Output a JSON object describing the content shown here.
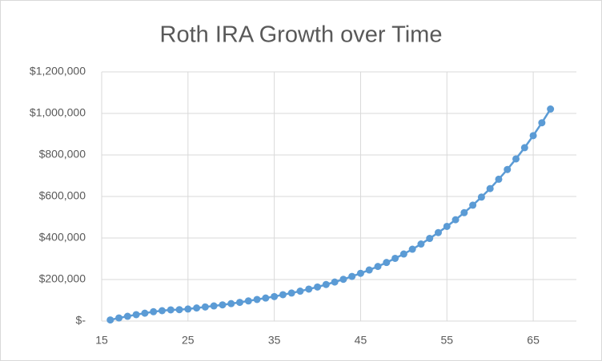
{
  "chart_data": {
    "type": "line",
    "title": "Roth IRA Growth over Time",
    "x": [
      16,
      17,
      18,
      19,
      20,
      21,
      22,
      23,
      24,
      25,
      26,
      27,
      28,
      29,
      30,
      31,
      32,
      33,
      34,
      35,
      36,
      37,
      38,
      39,
      40,
      41,
      42,
      43,
      44,
      45,
      46,
      47,
      48,
      49,
      50,
      51,
      52,
      53,
      54,
      55,
      56,
      57,
      58,
      59,
      60,
      61,
      62,
      63,
      64,
      65,
      66,
      67
    ],
    "values": [
      5500,
      15000,
      23000,
      31000,
      38000,
      45000,
      50000,
      54000,
      55000,
      58000,
      63000,
      68000,
      73000,
      78000,
      84000,
      90000,
      97000,
      104000,
      111000,
      118000,
      127000,
      135000,
      144000,
      154000,
      164000,
      176000,
      188000,
      201000,
      215000,
      230000,
      246000,
      263000,
      282000,
      302000,
      323000,
      346000,
      371000,
      398000,
      426000,
      456000,
      488000,
      522000,
      558000,
      597000,
      638000,
      683000,
      730000,
      781000,
      835000,
      893000,
      955000,
      1021000
    ],
    "color": "#5b9bd5",
    "xlim": [
      15,
      70
    ],
    "xticks": [
      15,
      25,
      35,
      45,
      55,
      65
    ],
    "ylim": [
      0,
      1200000
    ],
    "yticks": [
      {
        "value": 0,
        "label": "$-"
      },
      {
        "value": 200000,
        "label": "$200,000"
      },
      {
        "value": 400000,
        "label": "$400,000"
      },
      {
        "value": 600000,
        "label": "$600,000"
      },
      {
        "value": 800000,
        "label": "$800,000"
      },
      {
        "value": 1000000,
        "label": "$1,000,000"
      },
      {
        "value": 1200000,
        "label": "$1,200,000"
      }
    ],
    "grid": true
  }
}
